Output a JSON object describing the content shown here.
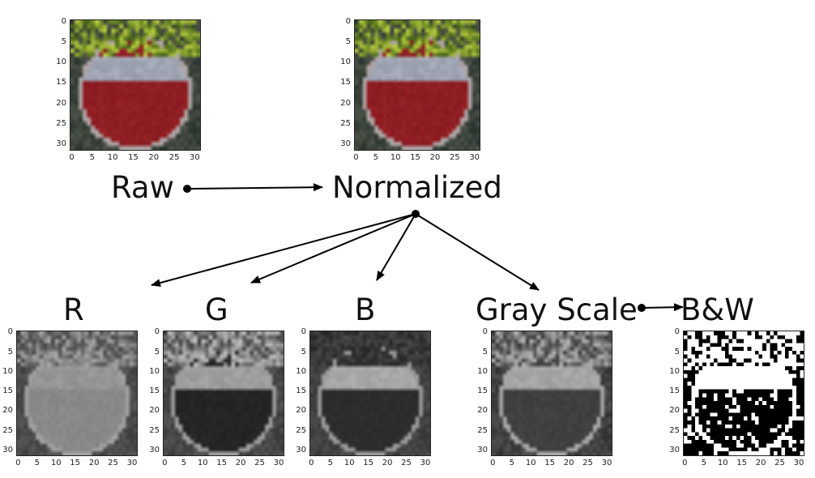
{
  "labels": {
    "raw": "Raw",
    "normalized": "Normalized",
    "r": "R",
    "g": "G",
    "b": "B",
    "gray": "Gray Scale",
    "bw": "B&W"
  },
  "ticks": {
    "x": [
      "0",
      "5",
      "10",
      "15",
      "20",
      "25",
      "30"
    ],
    "y": [
      "0",
      "5",
      "10",
      "15",
      "20",
      "25",
      "30"
    ]
  },
  "colors": {
    "sign_red": "#8b1c1f",
    "sign_band": "#9aa0b0",
    "foliage": "#6d8a2c",
    "background": "#2b2f2a",
    "arrow": "#000000"
  },
  "panels": [
    {
      "key": "raw",
      "mode": "color"
    },
    {
      "key": "normalized",
      "mode": "color"
    },
    {
      "key": "r",
      "mode": "r"
    },
    {
      "key": "g",
      "mode": "g"
    },
    {
      "key": "b",
      "mode": "b"
    },
    {
      "key": "gray",
      "mode": "gray"
    },
    {
      "key": "bw",
      "mode": "bw"
    }
  ]
}
